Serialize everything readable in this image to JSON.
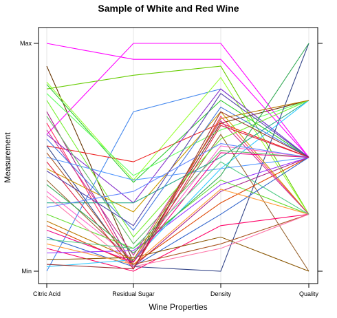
{
  "chart_data": {
    "type": "line",
    "title": "Sample of White and Red Wine",
    "xlabel": "Wine Properties",
    "ylabel": "Measurement",
    "categories": [
      "Citric Acid",
      "Residual Sugar",
      "Density",
      "Quality"
    ],
    "y_ticks": [
      "Min",
      "Max"
    ],
    "ylim": [
      0,
      1
    ],
    "grid": "vertical",
    "legend": "none",
    "series": [
      {
        "color": "#ff00ff",
        "values": [
          1.0,
          0.93,
          0.93,
          0.5
        ]
      },
      {
        "color": "#ff00ff",
        "values": [
          0.6,
          1.0,
          1.0,
          0.5
        ]
      },
      {
        "color": "#66cc00",
        "values": [
          0.8,
          0.86,
          0.9,
          0.25
        ]
      },
      {
        "color": "#663300",
        "values": [
          0.9,
          0.04,
          0.65,
          0.75
        ]
      },
      {
        "color": "#4488ee",
        "values": [
          0.0,
          0.7,
          0.8,
          0.5
        ]
      },
      {
        "color": "#99ff33",
        "values": [
          0.83,
          0.4,
          0.85,
          0.25
        ]
      },
      {
        "color": "#ee2222",
        "values": [
          0.55,
          0.48,
          0.65,
          0.5
        ]
      },
      {
        "color": "#33cc33",
        "values": [
          0.82,
          0.39,
          0.75,
          0.5
        ]
      },
      {
        "color": "#66ff66",
        "values": [
          0.78,
          0.42,
          0.62,
          0.75
        ]
      },
      {
        "color": "#aa2288",
        "values": [
          0.7,
          0.02,
          0.35,
          0.5
        ]
      },
      {
        "color": "#ff3366",
        "values": [
          0.65,
          0.01,
          0.68,
          0.25
        ]
      },
      {
        "color": "#8833cc",
        "values": [
          0.6,
          0.3,
          0.8,
          0.5
        ]
      },
      {
        "color": "#334488",
        "values": [
          0.55,
          0.02,
          0.0,
          1.0
        ]
      },
      {
        "color": "#5599ff",
        "values": [
          0.5,
          0.4,
          0.45,
          0.5
        ]
      },
      {
        "color": "#cc9900",
        "values": [
          0.45,
          0.26,
          0.7,
          0.25
        ]
      },
      {
        "color": "#996633",
        "values": [
          0.4,
          0.04,
          0.6,
          0.0
        ]
      },
      {
        "color": "#ff66cc",
        "values": [
          0.35,
          0.05,
          0.55,
          0.5
        ]
      },
      {
        "color": "#22aa88",
        "values": [
          0.3,
          0.3,
          0.5,
          0.75
        ]
      },
      {
        "color": "#66dd33",
        "values": [
          0.25,
          0.1,
          0.4,
          0.25
        ]
      },
      {
        "color": "#dd4400",
        "values": [
          0.2,
          0.03,
          0.3,
          0.5
        ]
      },
      {
        "color": "#3366cc",
        "values": [
          0.15,
          0.02,
          0.25,
          0.5
        ]
      },
      {
        "color": "#ff0066",
        "values": [
          0.1,
          0.0,
          0.2,
          0.25
        ]
      },
      {
        "color": "#885500",
        "values": [
          0.05,
          0.06,
          0.15,
          0.0
        ]
      },
      {
        "color": "#9933ff",
        "values": [
          0.08,
          0.09,
          0.38,
          0.5
        ]
      },
      {
        "color": "#ff9933",
        "values": [
          0.12,
          0.03,
          0.36,
          0.25
        ]
      },
      {
        "color": "#33ccff",
        "values": [
          0.02,
          0.05,
          0.45,
          0.75
        ]
      },
      {
        "color": "#66bb66",
        "values": [
          0.68,
          0.12,
          0.53,
          0.5
        ]
      },
      {
        "color": "#cc3399",
        "values": [
          0.62,
          0.07,
          0.66,
          0.25
        ]
      },
      {
        "color": "#4477dd",
        "values": [
          0.58,
          0.18,
          0.72,
          0.5
        ]
      },
      {
        "color": "#77ee33",
        "values": [
          0.75,
          0.15,
          0.58,
          0.75
        ]
      },
      {
        "color": "#aa5522",
        "values": [
          0.52,
          0.03,
          0.12,
          0.25
        ]
      },
      {
        "color": "#dd2244",
        "values": [
          0.48,
          0.01,
          0.64,
          0.5
        ]
      },
      {
        "color": "#5544aa",
        "values": [
          0.44,
          0.2,
          0.78,
          0.5
        ]
      },
      {
        "color": "#33aa55",
        "values": [
          0.38,
          0.08,
          0.42,
          1.0
        ]
      },
      {
        "color": "#ff77aa",
        "values": [
          0.33,
          0.02,
          0.1,
          0.25
        ]
      },
      {
        "color": "#6688ff",
        "values": [
          0.28,
          0.35,
          0.56,
          0.5
        ]
      },
      {
        "color": "#bb7700",
        "values": [
          0.22,
          0.05,
          0.67,
          0.75
        ]
      },
      {
        "color": "#ee0088",
        "values": [
          0.18,
          0.04,
          0.52,
          0.5
        ]
      },
      {
        "color": "#55cc88",
        "values": [
          0.14,
          0.1,
          0.48,
          0.25
        ]
      },
      {
        "color": "#993333",
        "values": [
          0.03,
          0.01,
          0.7,
          0.5
        ]
      }
    ]
  }
}
